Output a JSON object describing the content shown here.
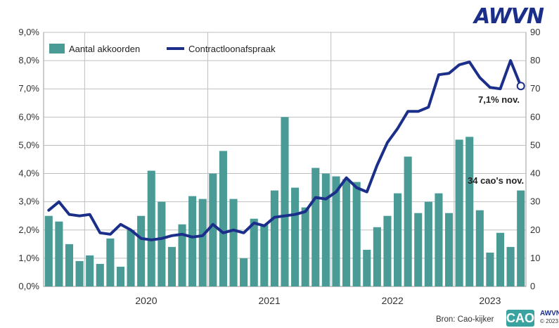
{
  "brand": {
    "logo_text": "AWVN",
    "source": "Bron: Cao-kijker",
    "mini_logo": "AWVN",
    "mini_copy": "© 2023",
    "cao_logo": "CAO"
  },
  "colors": {
    "bars": "#4a9a96",
    "line": "#1b2f8a",
    "grid": "#bfbfbf",
    "logo": "#1b2f8a"
  },
  "chart_data": {
    "type": "bar",
    "title": "",
    "xlabel": "",
    "ylabel": "",
    "ylim_left": [
      0,
      9
    ],
    "ylim_right": [
      0,
      90
    ],
    "y_left_ticks": [
      "0,0%",
      "1,0%",
      "2,0%",
      "3,0%",
      "4,0%",
      "5,0%",
      "6,0%",
      "7,0%",
      "8,0%",
      "9,0%"
    ],
    "y_right_ticks": [
      "0",
      "10",
      "20",
      "30",
      "40",
      "50",
      "60",
      "70",
      "80",
      "90"
    ],
    "years": [
      "2020",
      "2021",
      "2022",
      "2023"
    ],
    "legend": {
      "bars": "Aantal akkoorden",
      "line": "Contractloonafspraak",
      "placement": "top-left"
    },
    "series": [
      {
        "name": "Aantal akkoorden",
        "type": "bar",
        "axis": "right",
        "values": [
          25,
          23,
          15,
          9,
          11,
          8,
          17,
          7,
          20,
          25,
          41,
          30,
          14,
          22,
          32,
          31,
          40,
          48,
          31,
          10,
          24,
          22,
          34,
          60,
          35,
          28,
          42,
          40,
          39,
          38,
          37,
          13,
          21,
          25,
          33,
          46,
          26,
          30,
          33,
          26,
          52,
          53,
          27,
          12,
          19,
          14,
          34
        ]
      },
      {
        "name": "Contractloonafspraak",
        "type": "line",
        "axis": "left",
        "values": [
          2.7,
          3.0,
          2.55,
          2.5,
          2.55,
          1.9,
          1.85,
          2.2,
          2.0,
          1.7,
          1.65,
          1.7,
          1.8,
          1.85,
          1.75,
          1.8,
          2.2,
          1.9,
          2.0,
          1.9,
          2.25,
          2.15,
          2.45,
          2.5,
          2.55,
          2.65,
          3.15,
          3.1,
          3.35,
          3.85,
          3.5,
          3.35,
          4.3,
          5.1,
          5.6,
          6.2,
          6.2,
          6.35,
          7.5,
          7.55,
          7.85,
          7.95,
          7.4,
          7.05,
          7.0,
          8.0,
          7.1
        ]
      }
    ],
    "annotations": [
      {
        "text": "7,1% nov."
      },
      {
        "text": "34 cao's nov."
      }
    ],
    "grid": true
  }
}
